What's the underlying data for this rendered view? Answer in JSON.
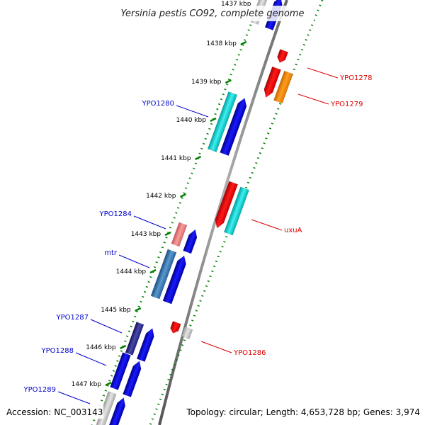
{
  "title": "Yersinia pestis CO92, complete genome",
  "footer": {
    "accession": "Accession: NC_003143",
    "summary": "Topology: circular; Length: 4,653,728 bp; Genes: 3,974"
  },
  "ticks": {
    "first_partial_label": "1437 kbp",
    "labels": [
      "1438 kbp",
      "1439 kbp",
      "1440 kbp",
      "1441 kbp",
      "1442 kbp",
      "1443 kbp",
      "1444 kbp",
      "1445 kbp",
      "1446 kbp",
      "1447 kbp"
    ]
  },
  "genes": {
    "left": [
      {
        "name": "YPO1280",
        "color": "#0000cc"
      },
      {
        "name": "YPO1284",
        "color": "#0000cc"
      },
      {
        "name": "mtr",
        "color": "#0000cc"
      },
      {
        "name": "YPO1287",
        "color": "#0000cc"
      },
      {
        "name": "YPO1288",
        "color": "#0000cc"
      },
      {
        "name": "YPO1289",
        "color": "#0000cc"
      }
    ],
    "right": [
      {
        "name": "YPO1278",
        "color": "#dd0000"
      },
      {
        "name": "YPO1279",
        "color": "#dd0000"
      },
      {
        "name": "uxuA",
        "color": "#dd0000"
      },
      {
        "name": "YPO1286",
        "color": "#dd0000"
      }
    ]
  },
  "colors": {
    "backbone": "#808080",
    "ticks_green": "#008000",
    "blue": "#0000ee",
    "cyan": "#00cccc",
    "red": "#ee0000",
    "orange": "#ff8800",
    "pink": "#ee7777",
    "steelblue": "#3070b0",
    "grey": "#bbbbbb",
    "navy": "#202080"
  }
}
